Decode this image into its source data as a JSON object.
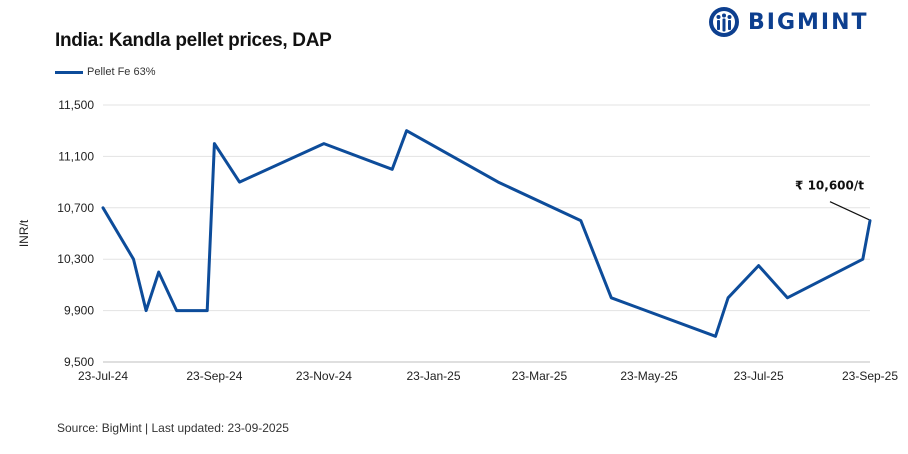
{
  "brand": {
    "name": "BIGMINT",
    "color": "#0d3f8f"
  },
  "footer": {
    "source": "Source: BigMint | Last updated: 23-09-2025"
  },
  "chart_data": {
    "type": "line",
    "title": "India: Kandla pellet prices, DAP",
    "xlabel": "",
    "ylabel": "INR/t",
    "ylim": [
      9500,
      11500
    ],
    "yticks": [
      9500,
      9900,
      10300,
      10700,
      11100,
      11500
    ],
    "ytick_labels": [
      "9,500",
      "9,900",
      "10,300",
      "10,700",
      "11,100",
      "11,500"
    ],
    "xlim": [
      "2024-07-23",
      "2025-09-23"
    ],
    "xticks": [
      "2024-07-23",
      "2024-09-23",
      "2024-11-23",
      "2025-01-23",
      "2025-03-23",
      "2025-05-23",
      "2025-07-23",
      "2025-09-23"
    ],
    "xtick_labels": [
      "23-Jul-24",
      "23-Sep-24",
      "23-Nov-24",
      "23-Jan-25",
      "23-Mar-25",
      "23-May-25",
      "23-Jul-25",
      "23-Sep-25"
    ],
    "grid": true,
    "legend": "top-left",
    "series": [
      {
        "name": "Pellet Fe 63%",
        "color": "#0d4c9a",
        "points": [
          [
            "2024-07-23",
            10700
          ],
          [
            "2024-08-09",
            10300
          ],
          [
            "2024-08-16",
            9900
          ],
          [
            "2024-08-23",
            10200
          ],
          [
            "2024-09-02",
            9900
          ],
          [
            "2024-09-19",
            9900
          ],
          [
            "2024-09-23",
            11200
          ],
          [
            "2024-10-07",
            10900
          ],
          [
            "2024-11-23",
            11200
          ],
          [
            "2024-12-31",
            11000
          ],
          [
            "2025-01-08",
            11300
          ],
          [
            "2025-02-28",
            10900
          ],
          [
            "2025-04-15",
            10600
          ],
          [
            "2025-05-02",
            10000
          ],
          [
            "2025-06-29",
            9700
          ],
          [
            "2025-07-06",
            10000
          ],
          [
            "2025-07-23",
            10250
          ],
          [
            "2025-08-08",
            10000
          ],
          [
            "2025-09-19",
            10300
          ],
          [
            "2025-09-23",
            10600
          ]
        ]
      }
    ],
    "annotations": [
      {
        "text": "₹ 10,600/t",
        "x": "2025-09-23",
        "y": 10600
      }
    ]
  }
}
